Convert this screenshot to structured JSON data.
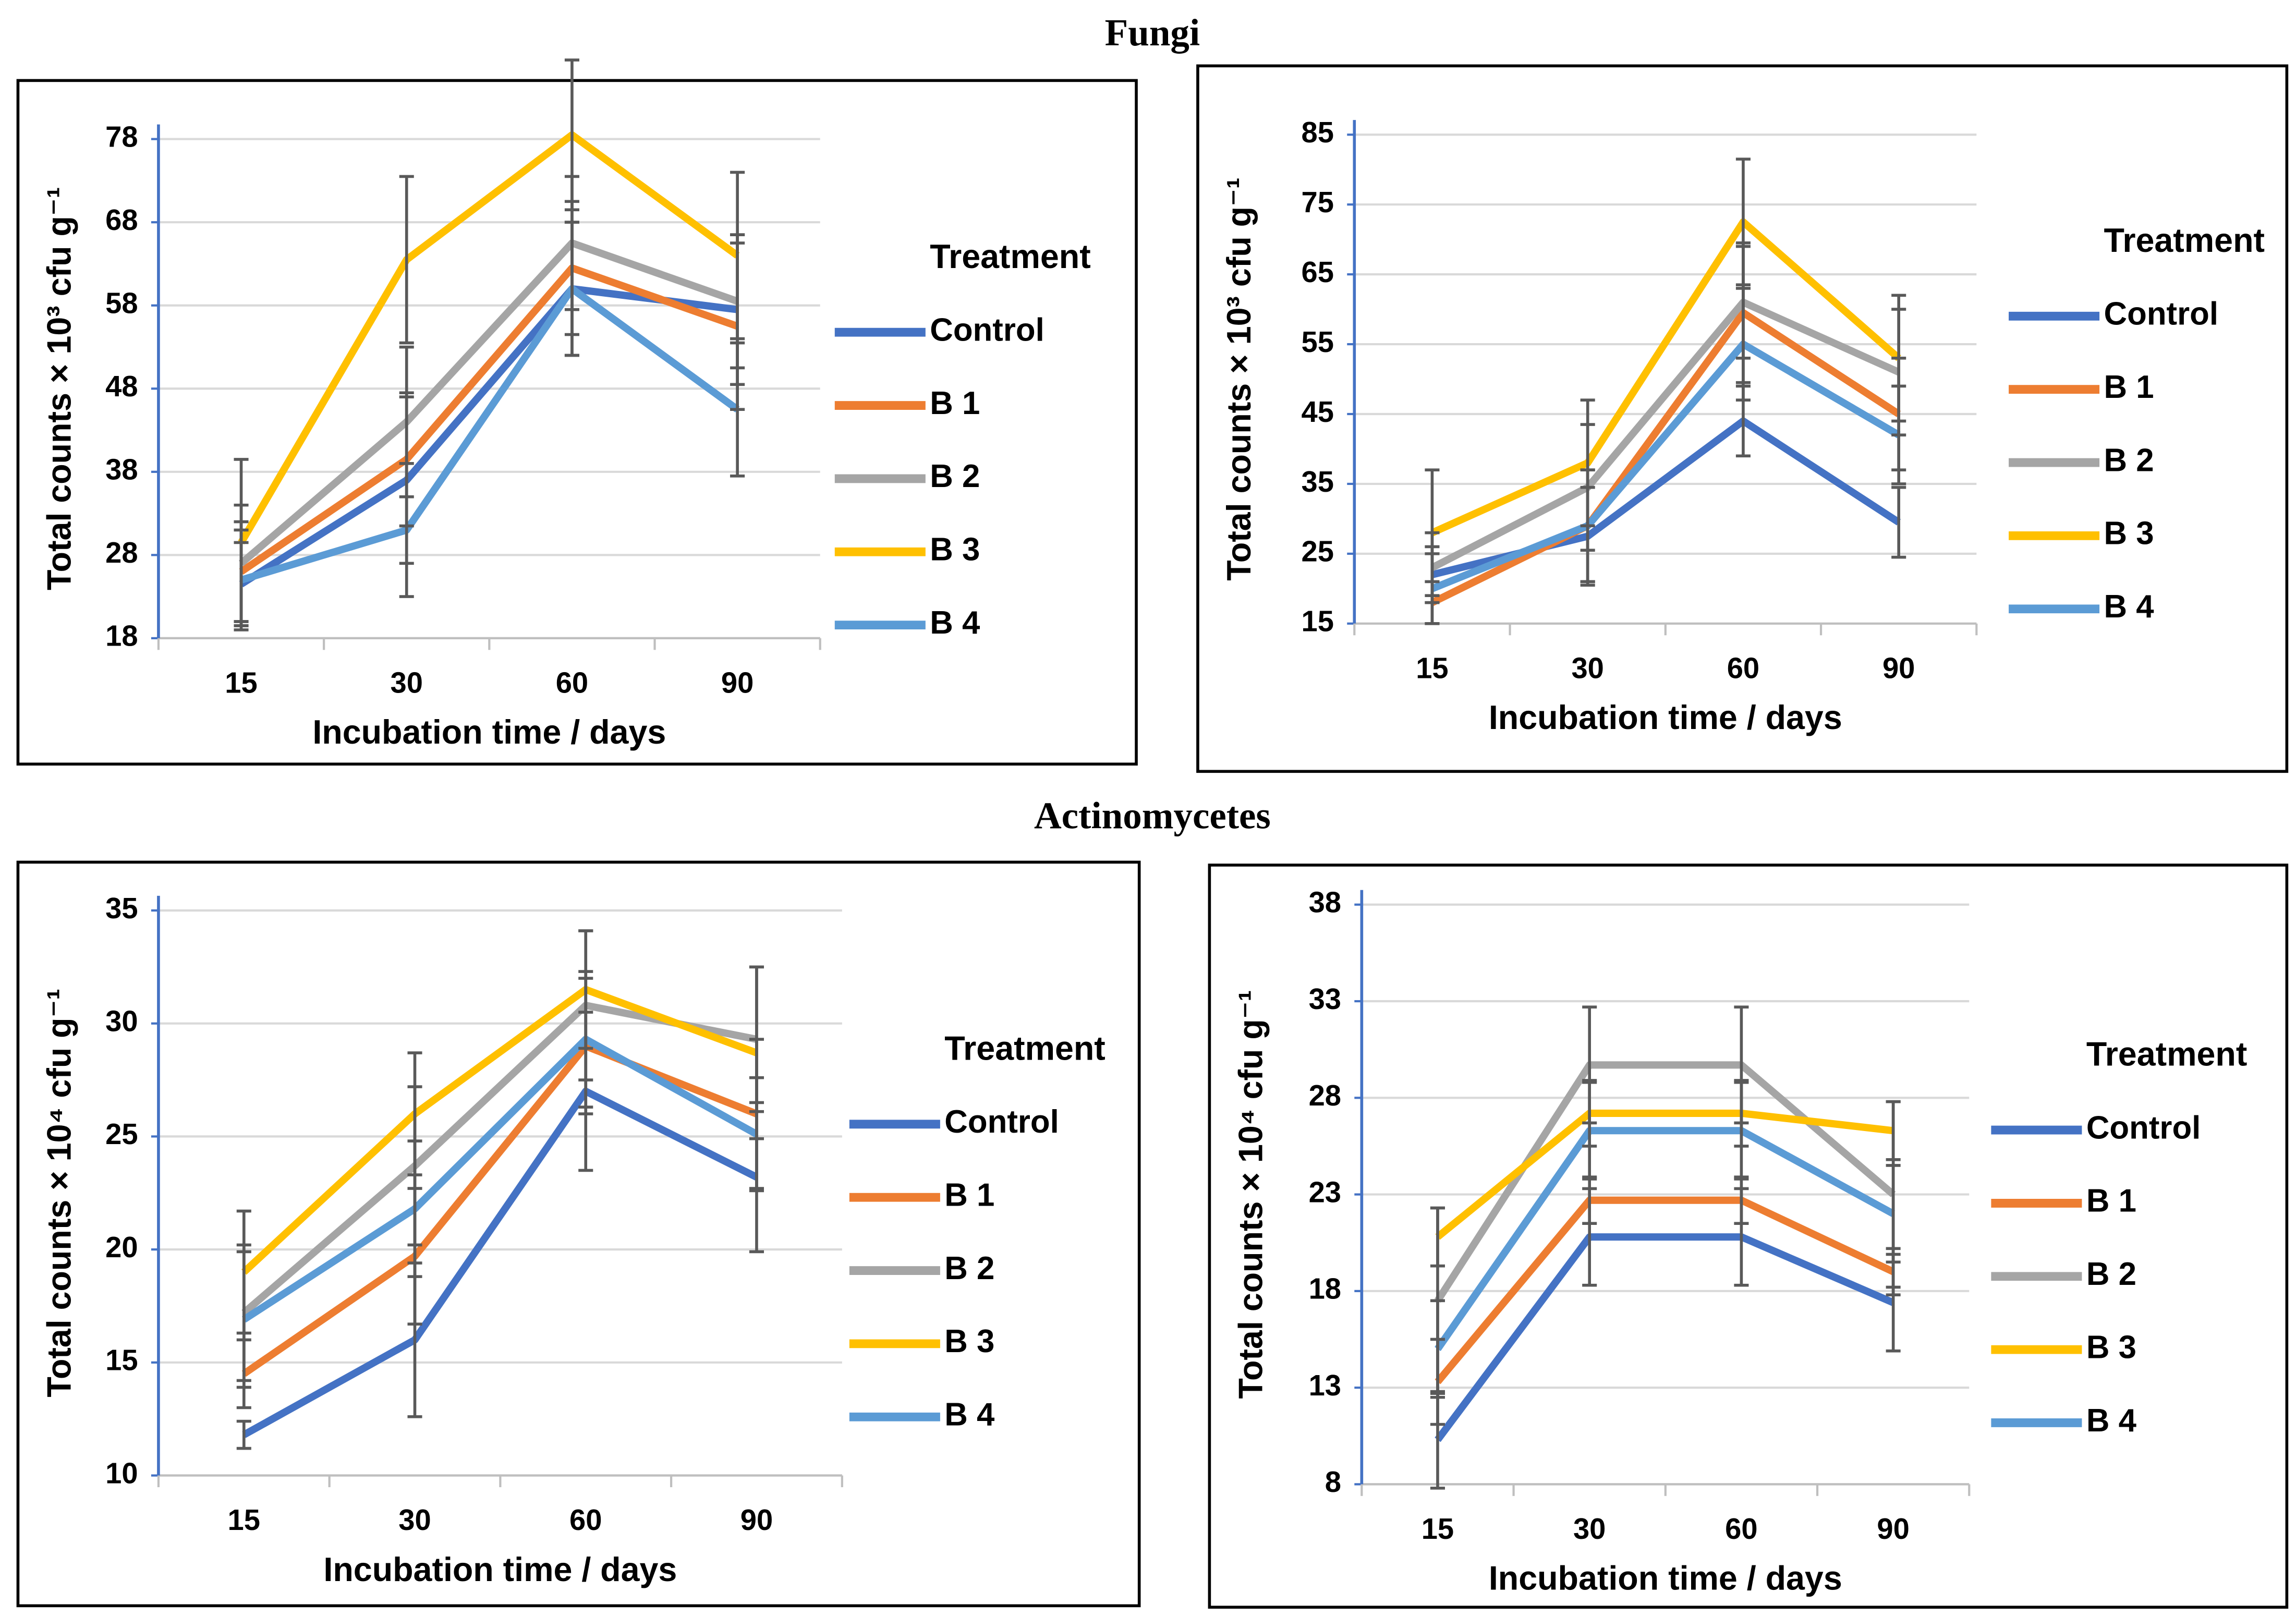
{
  "sections": [
    "Fungi",
    "Actinomycetes"
  ],
  "chart_data": [
    {
      "type": "line",
      "x_label": "Incubation time / days",
      "y_label": "Total counts  × 10³ cfu g⁻¹",
      "legend_title": "Treatment",
      "categories": [
        "15",
        "30",
        "60",
        "90"
      ],
      "ylim": [
        18,
        78
      ],
      "yticks": [
        18,
        28,
        38,
        48,
        58,
        68,
        78
      ],
      "grid": true,
      "legend": "right",
      "series": [
        {
          "name": "Control",
          "color": "#4472c4",
          "values": [
            24.5,
            37,
            60,
            57.5
          ],
          "errors": [
            5,
            10,
            8,
            9
          ]
        },
        {
          "name": "B 1",
          "color": "#ed7d31",
          "values": [
            26,
            39.5,
            62.5,
            55.5
          ],
          "errors": [
            6,
            8,
            8,
            10
          ]
        },
        {
          "name": "B 2",
          "color": "#a5a5a5",
          "values": [
            27,
            44,
            65.5,
            58.5
          ],
          "errors": [
            7,
            9,
            8,
            8
          ]
        },
        {
          "name": "B 3",
          "color": "#ffc000",
          "values": [
            29.5,
            63.5,
            78.5,
            64
          ],
          "errors": [
            10,
            10,
            9,
            10
          ]
        },
        {
          "name": "B 4",
          "color": "#5b9bd5",
          "values": [
            25,
            31,
            60,
            45.5
          ],
          "errors": [
            6,
            8,
            8,
            8
          ]
        }
      ]
    },
    {
      "type": "line",
      "x_label": "Incubation time / days",
      "y_label": "Total counts  × 10³ cfu g⁻¹",
      "legend_title": "Treatment",
      "categories": [
        "15",
        "30",
        "60",
        "90"
      ],
      "ylim": [
        15,
        85
      ],
      "yticks": [
        15,
        25,
        35,
        45,
        55,
        65,
        75,
        85
      ],
      "grid": true,
      "legend": "right",
      "series": [
        {
          "name": "Control",
          "color": "#4472c4",
          "values": [
            22,
            27.5,
            44,
            29.5
          ],
          "errors": [
            4,
            7,
            5,
            5
          ]
        },
        {
          "name": "B 1",
          "color": "#ed7d31",
          "values": [
            18,
            29,
            59.5,
            45
          ],
          "errors": [
            3,
            8,
            10,
            8
          ]
        },
        {
          "name": "B 2",
          "color": "#a5a5a5",
          "values": [
            23,
            34.5,
            61,
            51
          ],
          "errors": [
            5,
            9,
            8,
            9
          ]
        },
        {
          "name": "B 3",
          "color": "#ffc000",
          "values": [
            28,
            38,
            72.5,
            53
          ],
          "errors": [
            9,
            9,
            9,
            9
          ]
        },
        {
          "name": "B 4",
          "color": "#5b9bd5",
          "values": [
            20,
            29,
            55,
            42
          ],
          "errors": [
            5,
            8,
            8,
            7
          ]
        }
      ]
    },
    {
      "type": "line",
      "x_label": "Incubation time / days",
      "y_label": "Total counts  × 10⁴ cfu g⁻¹",
      "legend_title": "Treatment",
      "categories": [
        "15",
        "30",
        "60",
        "90"
      ],
      "ylim": [
        10,
        35
      ],
      "yticks": [
        10,
        15,
        20,
        25,
        30,
        35
      ],
      "grid": true,
      "legend": "right",
      "series": [
        {
          "name": "Control",
          "color": "#4472c4",
          "values": [
            11.8,
            16,
            27,
            23.2
          ],
          "errors": [
            0.6,
            3.4,
            3.5,
            3.3
          ]
        },
        {
          "name": "B 1",
          "color": "#ed7d31",
          "values": [
            14.5,
            19.7,
            29,
            26
          ],
          "errors": [
            1.5,
            3,
            3,
            3.3
          ]
        },
        {
          "name": "B 2",
          "color": "#a5a5a5",
          "values": [
            17.2,
            23.7,
            30.8,
            29.3
          ],
          "errors": [
            3,
            3.5,
            3.3,
            3.2
          ]
        },
        {
          "name": "B 3",
          "color": "#ffc000",
          "values": [
            19,
            26,
            31.5,
            28.7
          ],
          "errors": [
            2.7,
            2.7,
            2.6,
            3.8
          ]
        },
        {
          "name": "B 4",
          "color": "#5b9bd5",
          "values": [
            16.9,
            21.8,
            29.3,
            25.1
          ],
          "errors": [
            3,
            3,
            3,
            2.5
          ]
        }
      ]
    },
    {
      "type": "line",
      "x_label": "Incubation time / days",
      "y_label": "Total counts  × 10⁴ cfu g⁻¹",
      "legend_title": "Treatment",
      "categories": [
        "15",
        "30",
        "60",
        "90"
      ],
      "ylim": [
        8,
        38
      ],
      "yticks": [
        8,
        13,
        18,
        23,
        28,
        33,
        38
      ],
      "grid": true,
      "legend": "right",
      "series": [
        {
          "name": "Control",
          "color": "#4472c4",
          "values": [
            10.3,
            20.8,
            20.8,
            17.4
          ],
          "errors": [
            2.5,
            2.5,
            2.5,
            2.5
          ]
        },
        {
          "name": "B 1",
          "color": "#ed7d31",
          "values": [
            13.3,
            22.7,
            22.7,
            19
          ],
          "errors": [
            2.2,
            1.2,
            1.2,
            1.2
          ]
        },
        {
          "name": "B 2",
          "color": "#a5a5a5",
          "values": [
            17.5,
            29.7,
            29.7,
            23
          ],
          "errors": [
            4.8,
            3,
            3,
            4.8
          ]
        },
        {
          "name": "B 3",
          "color": "#ffc000",
          "values": [
            20.8,
            27.2,
            27.2,
            26.3
          ],
          "errors": [
            1.5,
            1.7,
            1.7,
            1.5
          ]
        },
        {
          "name": "B 4",
          "color": "#5b9bd5",
          "values": [
            15,
            26.3,
            26.3,
            22
          ],
          "errors": [
            2.5,
            2.5,
            2.5,
            2.5
          ]
        }
      ]
    }
  ]
}
